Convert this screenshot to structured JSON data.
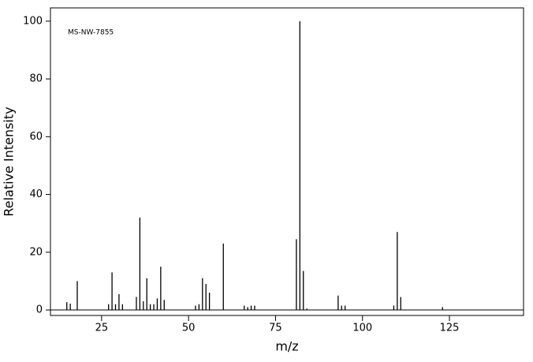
{
  "chart_data": {
    "type": "bar",
    "annotation": "MS-NW-7855",
    "x_label": "m/z",
    "y_label": "Relative Intensity",
    "x": [
      15,
      16,
      18,
      27,
      28,
      29,
      30,
      31,
      35,
      36,
      37,
      38,
      39,
      40,
      41,
      42,
      43,
      52,
      53,
      54,
      55,
      56,
      60,
      66,
      67,
      68,
      69,
      81,
      82,
      83,
      84,
      93,
      94,
      95,
      109,
      110,
      111,
      123
    ],
    "values": [
      2.7,
      2.2,
      10,
      2,
      13,
      2,
      5.5,
      2,
      4.5,
      32,
      3,
      11,
      2,
      2,
      4,
      15,
      3.5,
      1.5,
      2,
      11,
      9,
      6,
      23,
      1.5,
      1,
      1.5,
      1.5,
      24.5,
      100,
      13.5,
      0.5,
      5,
      1.5,
      1.5,
      1.5,
      27,
      4.5,
      1
    ],
    "color": "#000000",
    "xlim": [
      10.3,
      146.3
    ],
    "xticks": [
      25,
      50,
      75,
      100,
      125
    ],
    "ylim": [
      -1.9,
      104.6
    ],
    "yticks": [
      0,
      20,
      40,
      60,
      80,
      100
    ]
  }
}
